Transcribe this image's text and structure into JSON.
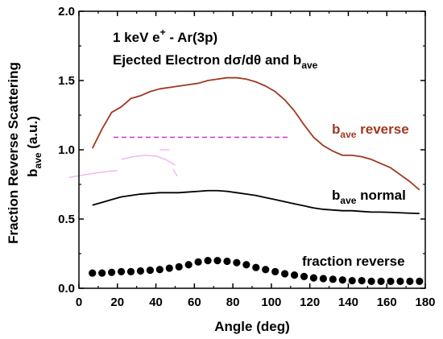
{
  "chart_data": {
    "type": "line",
    "xlabel": "Angle (deg)",
    "ylabel_line1": "Fraction Reverse Scattering",
    "ylabel_line2": "b",
    "ylabel_line2_sub": "ave",
    "ylabel_line2_rest": " (a.u.)",
    "xlim": [
      0,
      180
    ],
    "ylim": [
      0.0,
      2.0
    ],
    "x_ticks": [
      0,
      20,
      40,
      60,
      80,
      100,
      120,
      140,
      160,
      180
    ],
    "y_ticks": [
      0.0,
      0.5,
      1.0,
      1.5,
      2.0
    ],
    "x_tick_labels": [
      "0",
      "20",
      "40",
      "60",
      "80",
      "100",
      "120",
      "140",
      "160",
      "180"
    ],
    "y_tick_labels": [
      "0.0",
      "0.5",
      "1.0",
      "1.5",
      "2.0"
    ],
    "grid": false,
    "title_line1": {
      "prefix": "1 keV e",
      "sup": "+",
      "suffix": " - Ar(3p)"
    },
    "title_line2": {
      "prefix": "Ejected Electron dσ/dθ and b",
      "sub": "ave"
    },
    "colors": {
      "reverse": "#a0381f",
      "normal": "#000000",
      "fraction": "#000000",
      "dashed": "#cc33cc",
      "faint": "#f0b8f0"
    },
    "series": [
      {
        "name_main": "b",
        "name_sub": "ave",
        "name_rest": " reverse",
        "style": "line",
        "x": [
          7,
          12,
          17,
          22,
          27,
          32,
          37,
          42,
          47,
          52,
          57,
          62,
          67,
          72,
          77,
          82,
          87,
          92,
          97,
          102,
          107,
          112,
          117,
          122,
          127,
          132,
          137,
          142,
          147,
          152,
          157,
          162,
          167,
          172,
          177
        ],
        "values": [
          1.01,
          1.15,
          1.27,
          1.31,
          1.37,
          1.39,
          1.42,
          1.44,
          1.45,
          1.46,
          1.47,
          1.48,
          1.5,
          1.51,
          1.52,
          1.52,
          1.51,
          1.49,
          1.46,
          1.42,
          1.36,
          1.28,
          1.18,
          1.09,
          1.03,
          0.99,
          0.96,
          0.96,
          0.95,
          0.93,
          0.9,
          0.87,
          0.82,
          0.77,
          0.71
        ]
      },
      {
        "name_main": "b",
        "name_sub": "ave",
        "name_rest": " normal",
        "style": "line",
        "x": [
          7,
          12,
          17,
          22,
          27,
          32,
          37,
          42,
          47,
          52,
          57,
          62,
          67,
          72,
          77,
          82,
          87,
          92,
          97,
          102,
          107,
          112,
          117,
          122,
          127,
          132,
          137,
          142,
          147,
          152,
          157,
          162,
          167,
          172,
          177
        ],
        "values": [
          0.6,
          0.62,
          0.64,
          0.66,
          0.67,
          0.68,
          0.685,
          0.69,
          0.69,
          0.69,
          0.695,
          0.7,
          0.705,
          0.705,
          0.7,
          0.69,
          0.68,
          0.67,
          0.655,
          0.64,
          0.625,
          0.61,
          0.595,
          0.58,
          0.57,
          0.565,
          0.56,
          0.56,
          0.555,
          0.55,
          0.55,
          0.548,
          0.545,
          0.542,
          0.54
        ]
      },
      {
        "name_main": "fraction reverse",
        "name_sub": "",
        "name_rest": "",
        "style": "dots",
        "x": [
          7,
          12,
          17,
          22,
          27,
          32,
          37,
          42,
          47,
          52,
          57,
          62,
          67,
          72,
          77,
          82,
          87,
          92,
          97,
          102,
          107,
          112,
          117,
          122,
          127,
          132,
          137,
          142,
          147,
          152,
          157,
          162,
          167,
          172,
          177
        ],
        "values": [
          0.11,
          0.11,
          0.115,
          0.12,
          0.12,
          0.125,
          0.13,
          0.135,
          0.145,
          0.155,
          0.17,
          0.19,
          0.2,
          0.2,
          0.195,
          0.185,
          0.17,
          0.15,
          0.135,
          0.12,
          0.105,
          0.095,
          0.085,
          0.075,
          0.07,
          0.065,
          0.06,
          0.055,
          0.055,
          0.05,
          0.05,
          0.05,
          0.05,
          0.05,
          0.05
        ]
      }
    ],
    "dashed_line": {
      "x": [
        18,
        110
      ],
      "y": 1.09
    },
    "faint_arcs": [
      {
        "x": [
          -5,
          3,
          10,
          16,
          20
        ],
        "values": [
          0.8,
          0.82,
          0.835,
          0.845,
          0.85
        ]
      },
      {
        "x": [
          22,
          28,
          34,
          40,
          45,
          50
        ],
        "values": [
          0.93,
          0.95,
          0.96,
          0.955,
          0.93,
          0.89
        ]
      },
      {
        "x": [
          49,
          51
        ],
        "values": [
          0.86,
          0.81
        ]
      },
      {
        "x": [
          42,
          47
        ],
        "values": [
          1.0,
          1.0
        ]
      }
    ]
  }
}
